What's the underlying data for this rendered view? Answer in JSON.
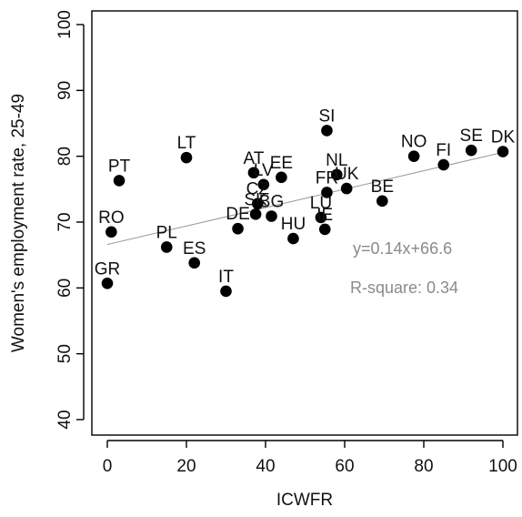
{
  "chart_data": {
    "type": "scatter",
    "xlabel": "ICWFR",
    "ylabel": "Women's employment rate, 25-49",
    "xlim": [
      -4,
      104
    ],
    "ylim": [
      38,
      102
    ],
    "xticks": [
      0,
      20,
      40,
      60,
      80,
      100
    ],
    "yticks": [
      40,
      50,
      60,
      70,
      80,
      90,
      100
    ],
    "xtick_labels": [
      "0",
      "20",
      "40",
      "60",
      "80",
      "100"
    ],
    "ytick_labels": [
      "40",
      "50",
      "60",
      "70",
      "80",
      "90",
      "100"
    ],
    "point_color": "#000000",
    "trend_color": "#999999",
    "annotation_color": "#8a8a8a",
    "points": [
      {
        "label": "GR",
        "x": 0,
        "y": 60.7
      },
      {
        "label": "RO",
        "x": 1,
        "y": 68.5
      },
      {
        "label": "PT",
        "x": 3,
        "y": 76.3
      },
      {
        "label": "PL",
        "x": 15,
        "y": 66.2
      },
      {
        "label": "LT",
        "x": 20,
        "y": 79.8
      },
      {
        "label": "ES",
        "x": 22,
        "y": 63.8
      },
      {
        "label": "IT",
        "x": 30,
        "y": 59.5
      },
      {
        "label": "DE",
        "x": 33,
        "y": 69.0
      },
      {
        "label": "AT",
        "x": 37,
        "y": 77.5
      },
      {
        "label": "CZ",
        "x": 38,
        "y": 72.8
      },
      {
        "label": "SK",
        "x": 37.5,
        "y": 71.2
      },
      {
        "label": "LV",
        "x": 39.5,
        "y": 75.7
      },
      {
        "label": "BG",
        "x": 41.5,
        "y": 70.9
      },
      {
        "label": "EE",
        "x": 44,
        "y": 76.8
      },
      {
        "label": "HU",
        "x": 47,
        "y": 67.5
      },
      {
        "label": "LU",
        "x": 54,
        "y": 70.7
      },
      {
        "label": "IE",
        "x": 55,
        "y": 68.9
      },
      {
        "label": "FR",
        "x": 55.5,
        "y": 74.5
      },
      {
        "label": "SI",
        "x": 55.5,
        "y": 83.9
      },
      {
        "label": "NL",
        "x": 58,
        "y": 77.2
      },
      {
        "label": "UK",
        "x": 60.5,
        "y": 75.1
      },
      {
        "label": "BE",
        "x": 69.5,
        "y": 73.2
      },
      {
        "label": "NO",
        "x": 77.5,
        "y": 80.0
      },
      {
        "label": "FI",
        "x": 85,
        "y": 78.7
      },
      {
        "label": "SE",
        "x": 92,
        "y": 80.9
      },
      {
        "label": "DK",
        "x": 100,
        "y": 80.7
      }
    ],
    "trendline": {
      "slope": 0.14,
      "intercept": 66.6,
      "x_range": [
        0,
        100
      ]
    },
    "annotations": {
      "equation": "y=0.14x+66.6",
      "r_square": "R-square: 0.34"
    }
  }
}
